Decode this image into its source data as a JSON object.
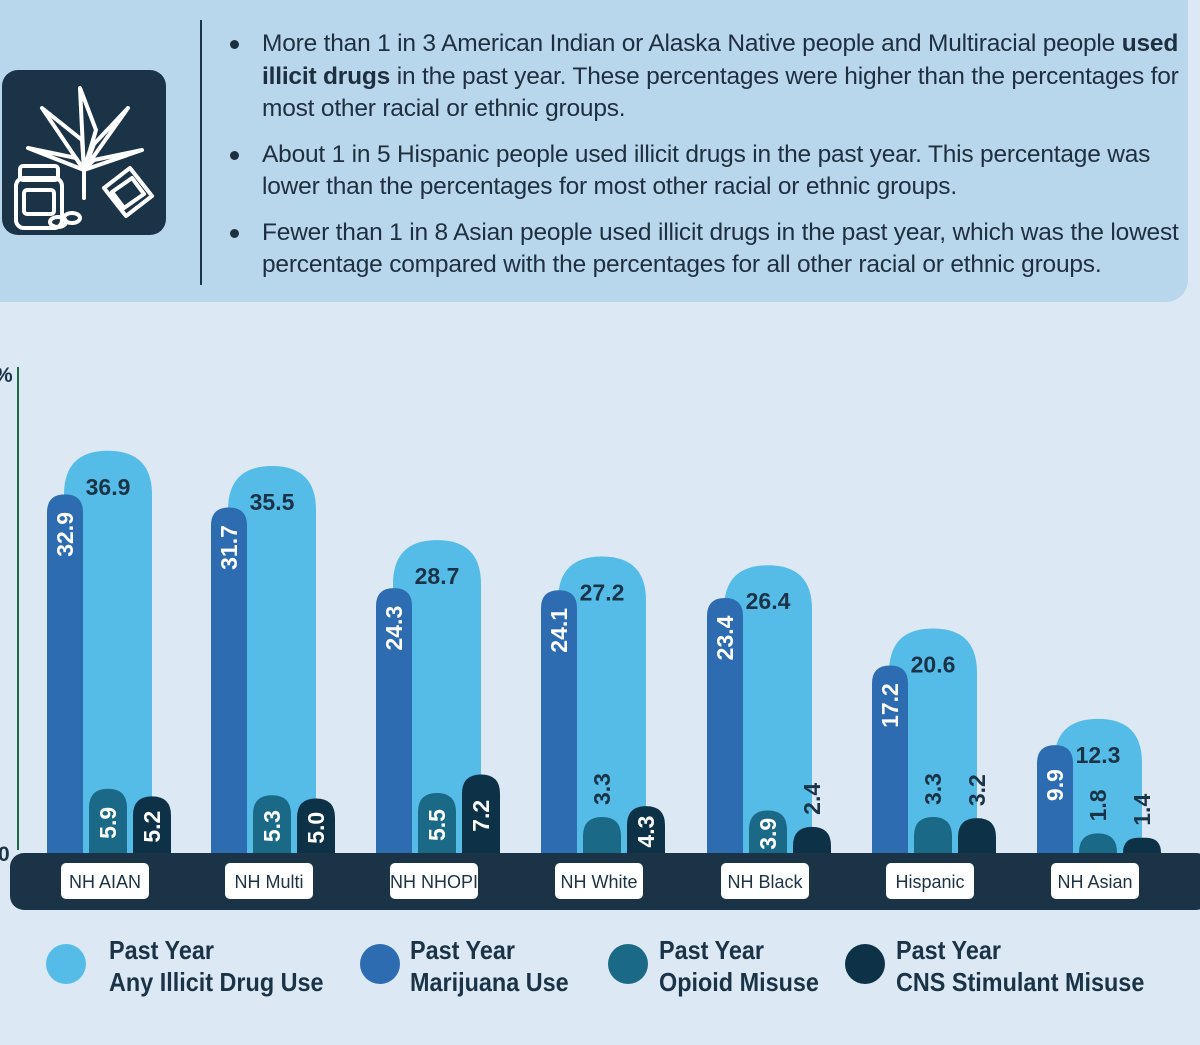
{
  "bullets": [
    {
      "before": "More than 1 in 3 American Indian or Alaska Native people and Multiracial people ",
      "bold": "used illicit drugs",
      "after": " in the past year. These percentages were higher than the percentages for most other racial or ethnic groups."
    },
    {
      "before": "About 1 in 5 Hispanic people used illicit drugs in the past year. This percentage was lower than the percentages for most other racial or ethnic groups.",
      "bold": "",
      "after": ""
    },
    {
      "before": "Fewer than 1 in 8 Asian people used illicit drugs in the past year, which was the lowest percentage compared with the percentages for all other racial or ethnic groups.",
      "bold": "",
      "after": ""
    }
  ],
  "icon": "cannabis-leaf-pill-bottle-bag-icon",
  "colors": {
    "any_illicit": "#55bce8",
    "marijuana": "#2e6cb2",
    "opioid": "#1a6a87",
    "cns": "#0d3247",
    "axis_band": "#1b3347",
    "background": "#dce8f4",
    "panel": "#b8d6ec"
  },
  "chart_data": {
    "type": "bar",
    "categories": [
      "NH AIAN",
      "NH Multi",
      "NH NHOPI",
      "NH White",
      "NH Black",
      "Hispanic",
      "NH Asian"
    ],
    "series": [
      {
        "name": "Past Year Any Illicit Drug Use",
        "values": [
          36.9,
          35.5,
          28.7,
          27.2,
          26.4,
          20.6,
          12.3
        ]
      },
      {
        "name": "Past Year Marijuana Use",
        "values": [
          32.9,
          31.7,
          24.3,
          24.1,
          23.4,
          17.2,
          9.9
        ]
      },
      {
        "name": "Past Year Opioid Misuse",
        "values": [
          5.9,
          5.3,
          5.5,
          3.3,
          3.9,
          3.3,
          1.8
        ]
      },
      {
        "name": "Past Year CNS Stimulant Misuse",
        "values": [
          5.2,
          5.0,
          7.2,
          4.3,
          2.4,
          3.2,
          1.4
        ]
      }
    ],
    "ytick_labels": [
      "0",
      "%"
    ],
    "ylim": [
      0,
      40
    ],
    "legend_position": "bottom",
    "grid": false
  },
  "legend": [
    {
      "line1": "Past Year",
      "line2": "Any Illicit Drug Use"
    },
    {
      "line1": "Past Year",
      "line2": "Marijuana Use"
    },
    {
      "line1": "Past Year",
      "line2": "Opioid Misuse"
    },
    {
      "line1": "Past Year",
      "line2": "CNS Stimulant Misuse"
    }
  ]
}
